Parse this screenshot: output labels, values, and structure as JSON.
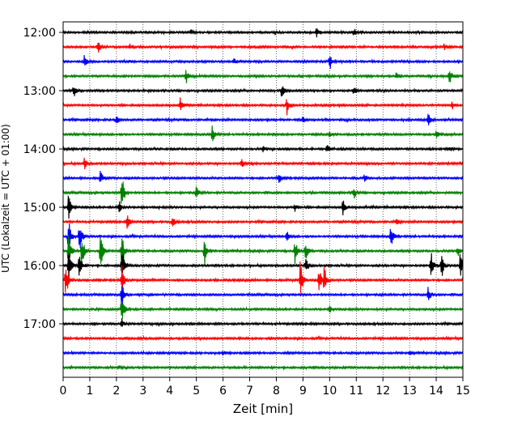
{
  "chart_data": {
    "type": "line",
    "xlabel": "Zeit  [min]",
    "ylabel": "UTC (Lokalzeit = UTC + 01:00)",
    "xlim": [
      0,
      15
    ],
    "x_ticks": [
      0,
      1,
      2,
      3,
      4,
      5,
      6,
      7,
      8,
      9,
      10,
      11,
      12,
      13,
      14,
      15
    ],
    "x_tick_labels": [
      "0",
      "1",
      "2",
      "3",
      "4",
      "5",
      "6",
      "7",
      "8",
      "9",
      "10",
      "11",
      "12",
      "13",
      "14",
      "15"
    ],
    "y_tick_labels": [
      "12:00",
      "13:00",
      "14:00",
      "15:00",
      "16:00",
      "17:00"
    ],
    "x_grid": true,
    "trace_interval_min": 15,
    "trace_start": "12:00",
    "trace_count": 24,
    "trace_colors": [
      "#000000",
      "#ff0000",
      "#0000ff",
      "#008000"
    ],
    "series": [
      {
        "start": "12:00",
        "events": [
          [
            4.8,
            0.3
          ],
          [
            9.5,
            0.5
          ],
          [
            10.9,
            0.4
          ]
        ]
      },
      {
        "start": "12:15",
        "events": [
          [
            1.3,
            0.7
          ],
          [
            2.5,
            0.3
          ],
          [
            14.3,
            0.3
          ]
        ]
      },
      {
        "start": "12:30",
        "events": [
          [
            0.8,
            0.6
          ],
          [
            6.4,
            0.3
          ],
          [
            10.0,
            0.9
          ]
        ]
      },
      {
        "start": "12:45",
        "events": [
          [
            4.6,
            0.9
          ],
          [
            12.5,
            0.4
          ],
          [
            14.5,
            0.9
          ]
        ]
      },
      {
        "start": "13:00",
        "events": [
          [
            0.4,
            0.7
          ],
          [
            8.2,
            0.7
          ],
          [
            10.9,
            0.5
          ]
        ]
      },
      {
        "start": "13:15",
        "events": [
          [
            4.4,
            0.7
          ],
          [
            8.4,
            0.9
          ],
          [
            14.6,
            0.4
          ]
        ]
      },
      {
        "start": "13:30",
        "events": [
          [
            2.0,
            0.5
          ],
          [
            9.0,
            0.3
          ],
          [
            13.7,
            0.6
          ]
        ]
      },
      {
        "start": "13:45",
        "events": [
          [
            5.6,
            0.8
          ],
          [
            10.0,
            0.3
          ],
          [
            14.0,
            0.5
          ]
        ]
      },
      {
        "start": "14:00",
        "events": [
          [
            7.5,
            0.3
          ],
          [
            9.9,
            0.5
          ],
          [
            14.5,
            0.3
          ]
        ]
      },
      {
        "start": "14:15",
        "events": [
          [
            0.8,
            0.6
          ],
          [
            6.7,
            0.7
          ]
        ]
      },
      {
        "start": "14:30",
        "events": [
          [
            1.4,
            0.7
          ],
          [
            8.1,
            0.5
          ],
          [
            11.3,
            0.3
          ]
        ]
      },
      {
        "start": "14:45",
        "events": [
          [
            2.2,
            2.0
          ],
          [
            5.0,
            0.6
          ],
          [
            10.9,
            0.7
          ]
        ]
      },
      {
        "start": "15:00",
        "events": [
          [
            0.2,
            1.3
          ],
          [
            2.1,
            1.0
          ],
          [
            8.7,
            0.4
          ],
          [
            10.5,
            0.8
          ]
        ]
      },
      {
        "start": "15:15",
        "events": [
          [
            2.4,
            0.7
          ],
          [
            4.1,
            0.6
          ],
          [
            12.5,
            0.3
          ]
        ]
      },
      {
        "start": "15:30",
        "events": [
          [
            0.2,
            2.0
          ],
          [
            0.6,
            1.8
          ],
          [
            8.4,
            0.5
          ],
          [
            12.3,
            1.1
          ]
        ]
      },
      {
        "start": "15:45",
        "events": [
          [
            0.2,
            2.0
          ],
          [
            0.7,
            2.0
          ],
          [
            1.4,
            2.0
          ],
          [
            2.2,
            2.0
          ],
          [
            5.3,
            1.5
          ],
          [
            8.7,
            1.2
          ],
          [
            9.1,
            1.0
          ],
          [
            14.8,
            0.5
          ]
        ]
      },
      {
        "start": "16:00",
        "events": [
          [
            0.2,
            2.0
          ],
          [
            0.6,
            1.5
          ],
          [
            2.2,
            2.0
          ],
          [
            9.1,
            0.8
          ],
          [
            13.8,
            1.5
          ],
          [
            14.2,
            1.3
          ],
          [
            14.9,
            1.5
          ]
        ]
      },
      {
        "start": "16:15",
        "events": [
          [
            0.1,
            2.0
          ],
          [
            2.2,
            1.4
          ],
          [
            8.9,
            2.0
          ],
          [
            9.6,
            1.4
          ],
          [
            9.8,
            1.4
          ]
        ]
      },
      {
        "start": "16:30",
        "events": [
          [
            2.2,
            1.6
          ],
          [
            13.7,
            0.9
          ]
        ]
      },
      {
        "start": "16:45",
        "events": [
          [
            2.2,
            1.6
          ],
          [
            10.0,
            0.4
          ]
        ]
      },
      {
        "start": "17:00",
        "events": [
          [
            2.2,
            0.5
          ]
        ]
      },
      {
        "start": "17:15",
        "events": []
      },
      {
        "start": "17:30",
        "events": [
          [
            6.0,
            0.2
          ],
          [
            13.0,
            0.2
          ]
        ]
      },
      {
        "start": "17:45",
        "events": [
          [
            2.1,
            0.2
          ]
        ]
      }
    ]
  }
}
